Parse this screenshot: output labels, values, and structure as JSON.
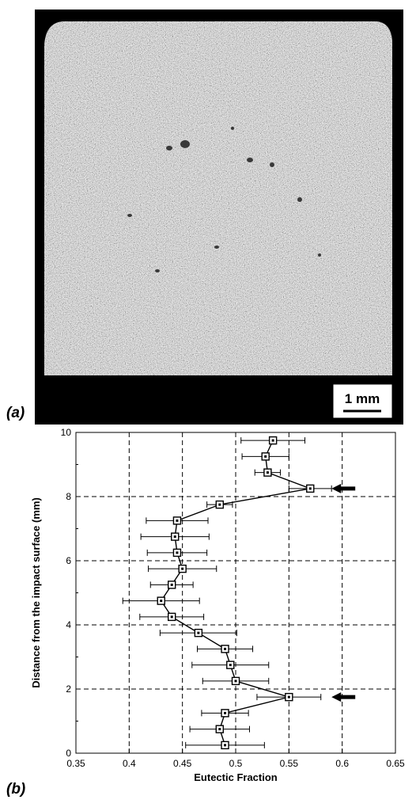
{
  "panel_labels": {
    "a": "(a)",
    "b": "(b)"
  },
  "scale_bar": {
    "label": "1 mm"
  },
  "chart_data": {
    "type": "scatter",
    "orientation": "horizontal-profile",
    "xlabel": "Eutectic Fraction",
    "ylabel": "Distance from the impact surface (mm)",
    "xlim": [
      0.35,
      0.65
    ],
    "ylim": [
      0,
      10
    ],
    "xticks": [
      "0.35",
      "0.4",
      "0.45",
      "0.5",
      "0.55",
      "0.6",
      "0.65"
    ],
    "yticks": [
      "0",
      "2",
      "4",
      "6",
      "8",
      "10"
    ],
    "grid": "dashed",
    "marker": "open-square",
    "series": [
      {
        "points": [
          {
            "x": 0.49,
            "y": 0.25,
            "err": 0.037
          },
          {
            "x": 0.485,
            "y": 0.75,
            "err": 0.028
          },
          {
            "x": 0.49,
            "y": 1.25,
            "err": 0.022
          },
          {
            "x": 0.55,
            "y": 1.75,
            "err": 0.03
          },
          {
            "x": 0.5,
            "y": 2.25,
            "err": 0.031
          },
          {
            "x": 0.495,
            "y": 2.75,
            "err": 0.036
          },
          {
            "x": 0.49,
            "y": 3.25,
            "err": 0.026
          },
          {
            "x": 0.465,
            "y": 3.75,
            "err": 0.036
          },
          {
            "x": 0.44,
            "y": 4.25,
            "err": 0.03
          },
          {
            "x": 0.43,
            "y": 4.75,
            "err": 0.036
          },
          {
            "x": 0.44,
            "y": 5.25,
            "err": 0.02
          },
          {
            "x": 0.45,
            "y": 5.75,
            "err": 0.032
          },
          {
            "x": 0.445,
            "y": 6.25,
            "err": 0.028
          },
          {
            "x": 0.443,
            "y": 6.75,
            "err": 0.032
          },
          {
            "x": 0.445,
            "y": 7.25,
            "err": 0.029
          },
          {
            "x": 0.485,
            "y": 7.75,
            "err": 0.012
          },
          {
            "x": 0.57,
            "y": 8.25,
            "err": 0.02
          },
          {
            "x": 0.53,
            "y": 8.75,
            "err": 0.012
          },
          {
            "x": 0.528,
            "y": 9.25,
            "err": 0.022
          },
          {
            "x": 0.535,
            "y": 9.75,
            "err": 0.03
          }
        ]
      }
    ],
    "arrows": [
      {
        "y": 8.25
      },
      {
        "y": 1.75
      }
    ]
  }
}
